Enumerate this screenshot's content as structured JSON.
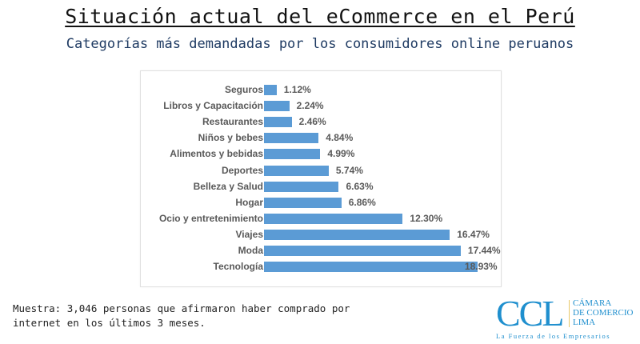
{
  "header": {
    "title": "Situación actual del eCommerce en el Perú",
    "subtitle": "Categorías más demandadas por los consumidores online peruanos"
  },
  "chart_data": {
    "type": "bar",
    "orientation": "horizontal",
    "title": "Categorías más demandadas por los consumidores online peruanos",
    "xlabel": "",
    "ylabel": "",
    "categories": [
      "Seguros",
      "Libros y Capacitación",
      "Restaurantes",
      "Niños y bebes",
      "Alimentos y bebidas",
      "Deportes",
      "Belleza y Salud",
      "Hogar",
      "Ocio y entretenimiento",
      "Viajes",
      "Moda",
      "Tecnología"
    ],
    "values": [
      1.12,
      2.24,
      2.46,
      4.84,
      4.99,
      5.74,
      6.63,
      6.86,
      12.3,
      16.47,
      17.44,
      18.93
    ],
    "value_labels": [
      "1.12%",
      "2.24%",
      "2.46%",
      "4.84%",
      "4.99%",
      "5.74%",
      "6.63%",
      "6.86%",
      "12.30%",
      "16.47%",
      "17.44%",
      "18.93%"
    ],
    "unit": "%",
    "grid": false,
    "legend": false,
    "bar_color": "#5b9bd5"
  },
  "footer": {
    "note_line1": "Muestra: 3,046 personas que afirmaron haber comprado por",
    "note_line2": "internet en los últimos 3 meses."
  },
  "logo": {
    "acronym": "CCL",
    "name_line1": "CÁMARA",
    "name_line2": "DE COMERCIO",
    "name_line3": "LIMA",
    "tagline": "La Fuerza de los Empresarios",
    "color": "#1f8fce"
  }
}
